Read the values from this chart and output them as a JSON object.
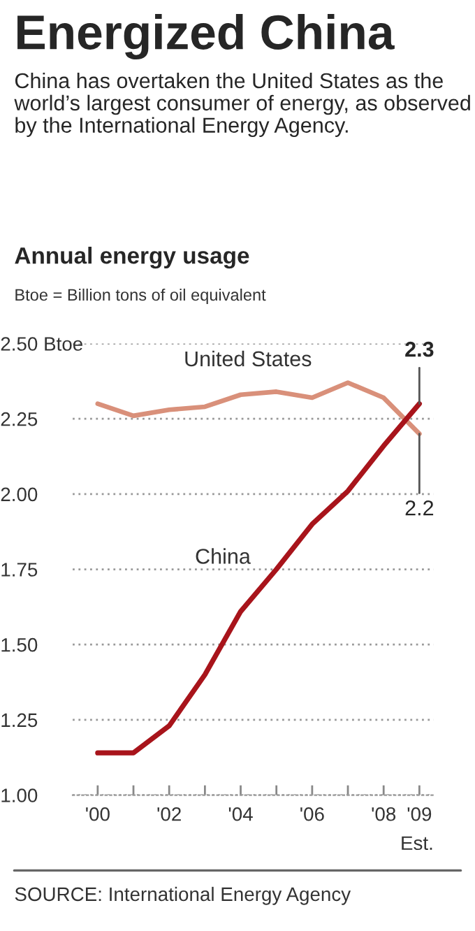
{
  "chart_data": {
    "type": "line",
    "title": "Energized China",
    "subtitle": "China has overtaken the United States as the world’s largest consumer of energy, as observed by the International Energy Agency.",
    "annotations": [
      "Annual energy usage",
      "Btoe = Billion tons of oil equivalent",
      "SOURCE: International Energy Agency",
      "Est.",
      {
        "text": "2.3",
        "x": 2009,
        "y": 2.3
      },
      {
        "text": "2.2",
        "x": 2009,
        "y": 2.2
      }
    ],
    "x": [
      2000,
      2001,
      2002,
      2003,
      2004,
      2005,
      2006,
      2007,
      2008,
      2009
    ],
    "series": [
      {
        "name": "United States",
        "color": "#d9907a",
        "values": [
          2.3,
          2.26,
          2.28,
          2.29,
          2.33,
          2.34,
          2.32,
          2.37,
          2.32,
          2.2
        ]
      },
      {
        "name": "China",
        "color": "#a8141b",
        "values": [
          1.14,
          1.14,
          1.23,
          1.4,
          1.61,
          1.75,
          1.9,
          2.01,
          2.16,
          2.3
        ]
      }
    ],
    "xlim": [
      1999.3,
      2009.4
    ],
    "xticks": [
      {
        "value": 2000,
        "label": "'00"
      },
      {
        "value": 2001,
        "label": null
      },
      {
        "value": 2002,
        "label": "'02"
      },
      {
        "value": 2003,
        "label": null
      },
      {
        "value": 2004,
        "label": "'04"
      },
      {
        "value": 2005,
        "label": null
      },
      {
        "value": 2006,
        "label": "'06"
      },
      {
        "value": 2007,
        "label": null
      },
      {
        "value": 2008,
        "label": "'08"
      },
      {
        "value": 2009,
        "label": "'09"
      }
    ],
    "ylim": [
      1.0,
      2.5
    ],
    "yticks": [
      {
        "value": 1.0,
        "label": "1.00"
      },
      {
        "value": 1.25,
        "label": "1.25"
      },
      {
        "value": 1.5,
        "label": "1.50"
      },
      {
        "value": 1.75,
        "label": "1.75"
      },
      {
        "value": 2.0,
        "label": "2.00"
      },
      {
        "value": 2.25,
        "label": "2.25"
      },
      {
        "value": 2.5,
        "label": "2.50 Btoe"
      }
    ],
    "grid": "y",
    "legend": false,
    "marker": "none",
    "line_style": "solid"
  }
}
